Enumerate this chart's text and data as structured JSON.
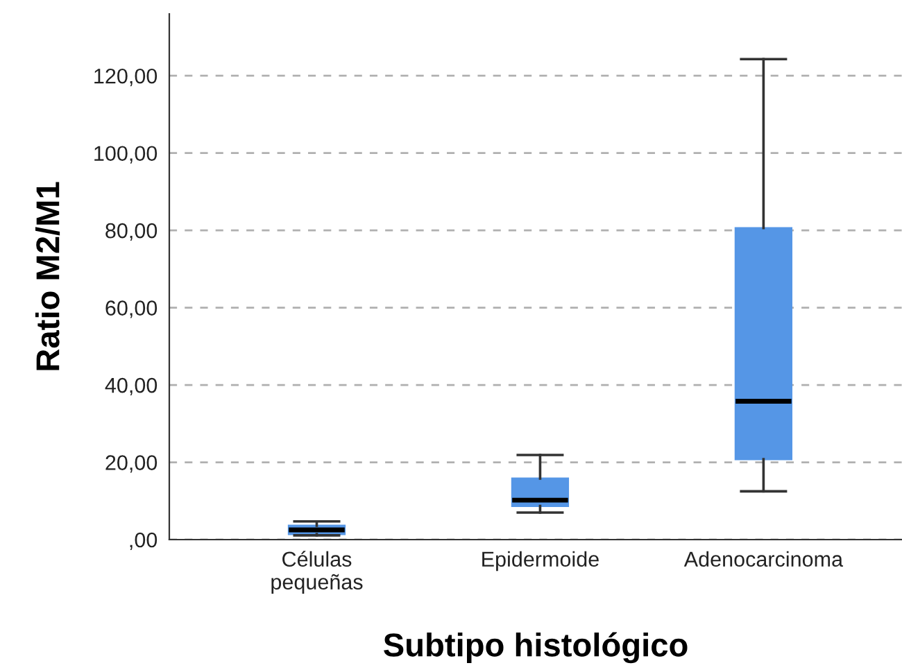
{
  "chart_data": {
    "type": "box",
    "xlabel": "Subtipo histológico",
    "ylabel": "Ratio M2/M1",
    "categories": [
      "Células\npequeñas",
      "Epidermoide",
      "Adenocarcinoma"
    ],
    "boxes": [
      {
        "low": 1.1,
        "q1": 1.4,
        "median": 2.5,
        "q3": 3.6,
        "high": 4.7
      },
      {
        "low": 7.0,
        "q1": 8.7,
        "median": 10.2,
        "q3": 15.8,
        "high": 21.9
      },
      {
        "low": 12.5,
        "q1": 20.8,
        "median": 35.8,
        "q3": 80.6,
        "high": 124.3
      }
    ],
    "color": "#5596e6",
    "ylim": [
      0,
      136
    ],
    "yticks": [
      {
        "value": 0,
        "label": ",00"
      },
      {
        "value": 20,
        "label": "20,00"
      },
      {
        "value": 40,
        "label": "40,00"
      },
      {
        "value": 60,
        "label": "60,00"
      },
      {
        "value": 80,
        "label": "80,00"
      },
      {
        "value": 100,
        "label": "100,00"
      },
      {
        "value": 120,
        "label": "120,00"
      }
    ],
    "grid": "y"
  }
}
